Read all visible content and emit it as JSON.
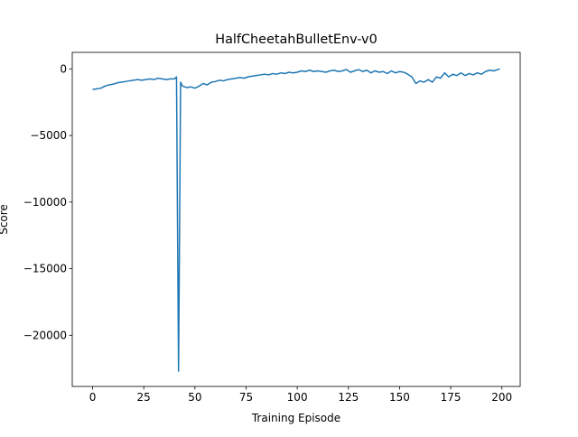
{
  "chart_data": {
    "type": "line",
    "title": "HalfCheetahBulletEnv-v0",
    "x_label": "Training Episode",
    "y_label": "Score",
    "x": [
      0,
      2,
      4,
      6,
      8,
      10,
      12,
      14,
      16,
      18,
      20,
      22,
      24,
      26,
      28,
      30,
      32,
      34,
      36,
      38,
      40,
      41,
      42,
      43,
      44,
      46,
      48,
      50,
      52,
      54,
      56,
      58,
      60,
      62,
      64,
      66,
      68,
      70,
      72,
      74,
      76,
      78,
      80,
      82,
      84,
      86,
      88,
      90,
      92,
      94,
      96,
      98,
      100,
      102,
      104,
      106,
      108,
      110,
      112,
      114,
      116,
      118,
      120,
      122,
      124,
      126,
      128,
      130,
      132,
      134,
      136,
      138,
      140,
      142,
      144,
      146,
      148,
      150,
      152,
      154,
      156,
      158,
      160,
      162,
      164,
      166,
      168,
      170,
      172,
      174,
      176,
      178,
      180,
      182,
      184,
      186,
      188,
      190,
      192,
      194,
      196,
      198,
      199
    ],
    "series": [
      {
        "name": "Score",
        "color": "#1f77b4",
        "values": [
          -1550,
          -1500,
          -1450,
          -1300,
          -1200,
          -1150,
          -1050,
          -1000,
          -950,
          -900,
          -850,
          -800,
          -850,
          -800,
          -750,
          -800,
          -700,
          -750,
          -800,
          -750,
          -750,
          -600,
          -22700,
          -1000,
          -1300,
          -1400,
          -1350,
          -1450,
          -1300,
          -1100,
          -1200,
          -1000,
          -950,
          -850,
          -900,
          -800,
          -750,
          -700,
          -650,
          -700,
          -600,
          -550,
          -500,
          -450,
          -400,
          -450,
          -350,
          -400,
          -300,
          -350,
          -250,
          -300,
          -250,
          -150,
          -200,
          -100,
          -200,
          -150,
          -200,
          -250,
          -150,
          -100,
          -200,
          -150,
          -50,
          -250,
          -150,
          -50,
          -200,
          -100,
          -300,
          -150,
          -250,
          -200,
          -350,
          -150,
          -300,
          -200,
          -250,
          -400,
          -600,
          -1100,
          -900,
          -1000,
          -800,
          -1000,
          -600,
          -700,
          -300,
          -600,
          -400,
          -500,
          -300,
          -500,
          -350,
          -450,
          -300,
          -400,
          -200,
          -100,
          -150,
          -50,
          0
        ]
      }
    ],
    "xlim": [
      -9.95,
      208.95
    ],
    "ylim": [
      -23840,
      1240
    ],
    "xticks": [
      0,
      25,
      50,
      75,
      100,
      125,
      150,
      175,
      200
    ],
    "yticks": [
      {
        "value": 0,
        "label": "0"
      },
      {
        "value": -5000,
        "label": "−5000"
      },
      {
        "value": -10000,
        "label": "−10000"
      },
      {
        "value": -15000,
        "label": "−15000"
      },
      {
        "value": -20000,
        "label": "−20000"
      }
    ]
  }
}
